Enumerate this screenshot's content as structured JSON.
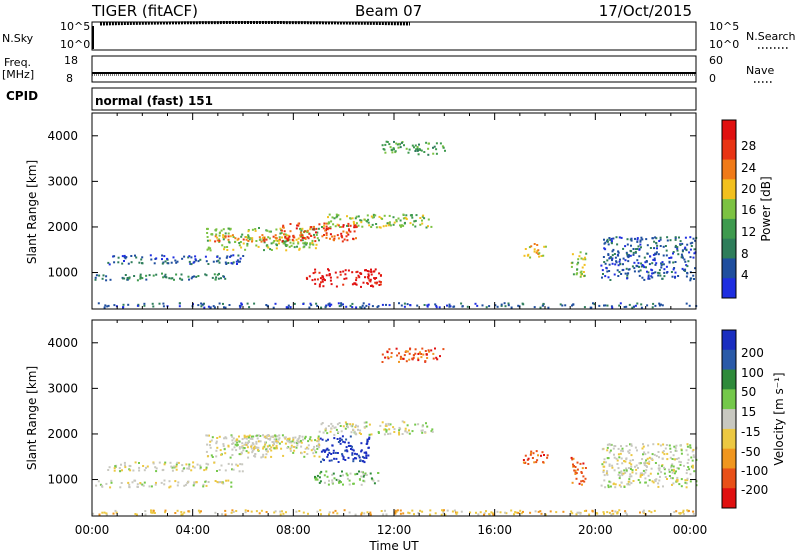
{
  "header": {
    "title": "TIGER (fitACF)",
    "beam": "Beam 07",
    "date": "17/Oct/2015"
  },
  "top_panels": {
    "nsky_label": "N.Sky",
    "nsky_ticks": [
      "10^5",
      "10^0"
    ],
    "nsearch_label": "N.Search",
    "nsearch_ticks": [
      "10^5",
      "10^0"
    ],
    "freq_label_1": "Freq.",
    "freq_label_2": "[MHz]",
    "freq_ticks": [
      "18",
      "8"
    ],
    "nave_label": "Nave",
    "nave_ticks": [
      "60",
      "0"
    ],
    "cpid_label": "CPID",
    "cpid_text": "normal (fast) 151"
  },
  "colors": {
    "power": [
      "#1e2ee0",
      "#1f4e9e",
      "#2e7d5a",
      "#3e9a4e",
      "#7cc242",
      "#f2c01e",
      "#f07a18",
      "#e83414",
      "#e01010"
    ],
    "velocity": [
      "#1a2ec0",
      "#2a5aa8",
      "#2e8a3a",
      "#74c84a",
      "#c8c8c0",
      "#ecc842",
      "#f0961e",
      "#e85018",
      "#e01010"
    ]
  },
  "chart_data": [
    {
      "type": "heatmap",
      "panel": "power",
      "ylabel": "Slant Range [km]",
      "ylim": [
        200,
        4500
      ],
      "yticks": [
        "1000",
        "2000",
        "3000",
        "4000"
      ],
      "xlim": [
        0,
        24
      ],
      "colorbar_label": "Power [dB]",
      "colorbar_ticks": [
        "4",
        "8",
        "12",
        "16",
        "20",
        "24",
        "28"
      ],
      "regions": [
        {
          "t0": 0.1,
          "t1": 5.5,
          "r0": 850,
          "r1": 1000,
          "level": 2
        },
        {
          "t0": 0.6,
          "t1": 6.0,
          "r0": 1200,
          "r1": 1400,
          "level": 1
        },
        {
          "t0": 4.5,
          "t1": 9.0,
          "r0": 1500,
          "r1": 2000,
          "level": 4
        },
        {
          "t0": 4.8,
          "t1": 8.5,
          "r0": 1700,
          "r1": 1850,
          "level": 6
        },
        {
          "t0": 7.5,
          "t1": 10.5,
          "r0": 1700,
          "r1": 2100,
          "level": 7
        },
        {
          "t0": 8.5,
          "t1": 11.5,
          "r0": 700,
          "r1": 1100,
          "level": 8
        },
        {
          "t0": 9.0,
          "t1": 13.5,
          "r0": 2000,
          "r1": 2300,
          "level": 4
        },
        {
          "t0": 11.5,
          "t1": 14.0,
          "r0": 3600,
          "r1": 3900,
          "level": 3
        },
        {
          "t0": 17.1,
          "t1": 18.0,
          "r0": 1350,
          "r1": 1650,
          "level": 5
        },
        {
          "t0": 19.0,
          "t1": 19.6,
          "r0": 900,
          "r1": 1500,
          "level": 4
        },
        {
          "t0": 20.2,
          "t1": 24.0,
          "r0": 850,
          "r1": 1800,
          "level": 1
        },
        {
          "t0": 0.0,
          "t1": 24.0,
          "r0": 250,
          "r1": 350,
          "level": 1
        }
      ]
    },
    {
      "type": "heatmap",
      "panel": "velocity",
      "ylabel": "Slant Range [km]",
      "ylim": [
        200,
        4500
      ],
      "yticks": [
        "1000",
        "2000",
        "3000",
        "4000"
      ],
      "xlim": [
        0,
        24
      ],
      "xticks": [
        "00:00",
        "04:00",
        "08:00",
        "12:00",
        "16:00",
        "20:00",
        "00:00"
      ],
      "xlabel": "Time UT",
      "colorbar_label": "Velocity [m s⁻¹]",
      "colorbar_ticks": [
        "200",
        "100",
        "50",
        "15",
        "-15",
        "-50",
        "-100",
        "-200"
      ],
      "regions": [
        {
          "t0": 0.1,
          "t1": 5.5,
          "r0": 850,
          "r1": 1000,
          "level": 4
        },
        {
          "t0": 0.6,
          "t1": 6.0,
          "r0": 1200,
          "r1": 1400,
          "level": 4
        },
        {
          "t0": 4.5,
          "t1": 9.0,
          "r0": 1500,
          "r1": 2000,
          "level": 4
        },
        {
          "t0": 5.5,
          "t1": 9.0,
          "r0": 1700,
          "r1": 2000,
          "level": 4
        },
        {
          "t0": 9.0,
          "t1": 11.0,
          "r0": 1400,
          "r1": 2000,
          "level": 0
        },
        {
          "t0": 8.8,
          "t1": 11.5,
          "r0": 900,
          "r1": 1200,
          "level": 3
        },
        {
          "t0": 9.0,
          "t1": 13.5,
          "r0": 2000,
          "r1": 2300,
          "level": 4
        },
        {
          "t0": 11.5,
          "t1": 14.0,
          "r0": 3600,
          "r1": 3900,
          "level": 7
        },
        {
          "t0": 17.1,
          "t1": 18.1,
          "r0": 1350,
          "r1": 1650,
          "level": 7
        },
        {
          "t0": 19.0,
          "t1": 19.6,
          "r0": 900,
          "r1": 1500,
          "level": 7
        },
        {
          "t0": 20.2,
          "t1": 24.0,
          "r0": 850,
          "r1": 1800,
          "level": 4
        },
        {
          "t0": 0.0,
          "t1": 24.0,
          "r0": 250,
          "r1": 350,
          "level": 5
        }
      ]
    }
  ]
}
